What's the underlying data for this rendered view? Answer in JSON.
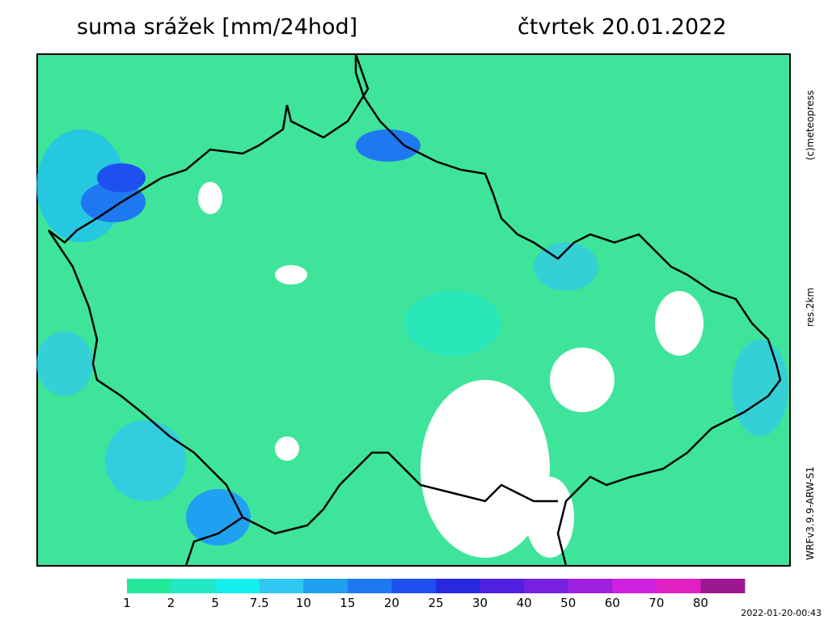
{
  "header": {
    "title": "suma srážek [mm/24hod]",
    "date": "čtvrtek 20.01.2022"
  },
  "side": {
    "copyright": "(c)meteopress",
    "resolution": "res.2km",
    "model": "WRFv3.9.9-ARW-S1"
  },
  "colorbar": {
    "levels": [
      1,
      2,
      5,
      7.5,
      10,
      15,
      20,
      25,
      30,
      40,
      50,
      60,
      70,
      80
    ],
    "colors": [
      "#22e89c",
      "#22e8c8",
      "#12f0f0",
      "#30c8f0",
      "#20a0f0",
      "#1e78f0",
      "#1e50f0",
      "#2828e0",
      "#5020e0",
      "#7820e0",
      "#a020e0",
      "#d020e0",
      "#e020c0",
      "#9c1890"
    ]
  },
  "footer": {
    "timestamp": "2022-01-20-00:43"
  }
}
